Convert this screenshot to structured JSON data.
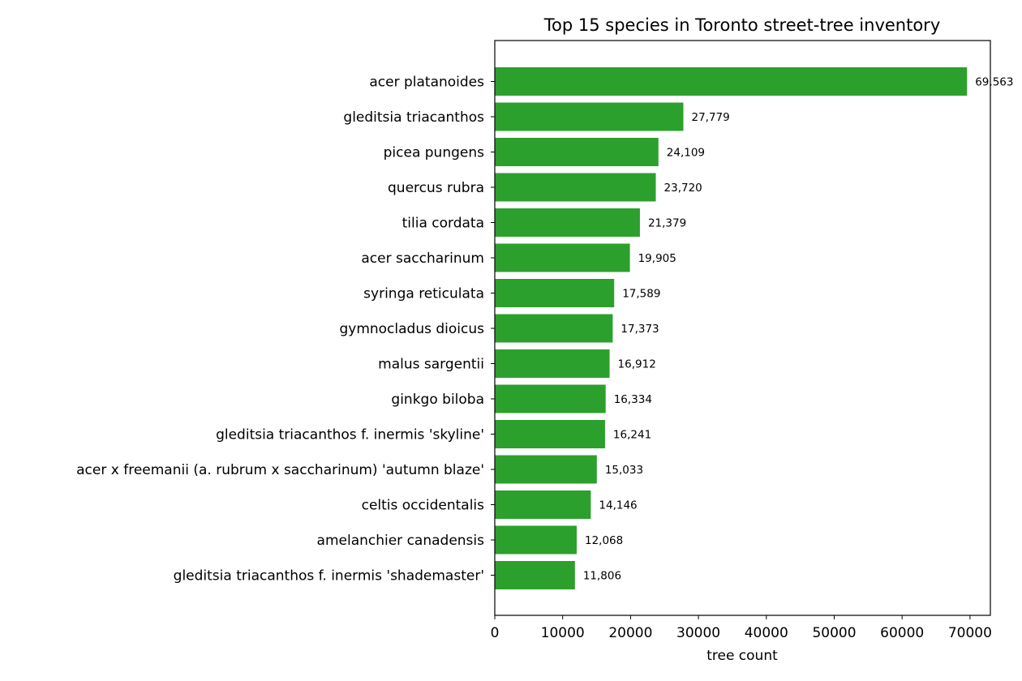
{
  "chart_data": {
    "type": "bar",
    "orientation": "horizontal",
    "title": "Top 15 species in Toronto street-tree inventory",
    "xlabel": "tree count",
    "ylabel": "",
    "xlim": [
      0,
      73000
    ],
    "x_ticks": [
      0,
      10000,
      20000,
      30000,
      40000,
      50000,
      60000,
      70000
    ],
    "x_tick_labels": [
      "0",
      "10000",
      "20000",
      "30000",
      "40000",
      "50000",
      "60000",
      "70000"
    ],
    "grid": false,
    "bar_color": "#2ca02c",
    "categories": [
      "acer platanoides",
      "gleditsia triacanthos",
      "picea pungens",
      "quercus rubra",
      "tilia cordata",
      "acer saccharinum",
      "syringa reticulata",
      "gymnocladus dioicus",
      "malus sargentii",
      "ginkgo biloba",
      "gleditsia triacanthos f. inermis 'skyline'",
      "acer x freemanii (a. rubrum x saccharinum) 'autumn blaze'",
      "celtis occidentalis",
      "amelanchier canadensis",
      "gleditsia triacanthos f. inermis 'shademaster'"
    ],
    "values": [
      69563,
      27779,
      24109,
      23720,
      21379,
      19905,
      17589,
      17373,
      16912,
      16334,
      16241,
      15033,
      14146,
      12068,
      11806
    ],
    "value_labels": [
      "69,563",
      "27,779",
      "24,109",
      "23,720",
      "21,379",
      "19,905",
      "17,589",
      "17,373",
      "16,912",
      "16,334",
      "16,241",
      "15,033",
      "14,146",
      "12,068",
      "11,806"
    ]
  }
}
